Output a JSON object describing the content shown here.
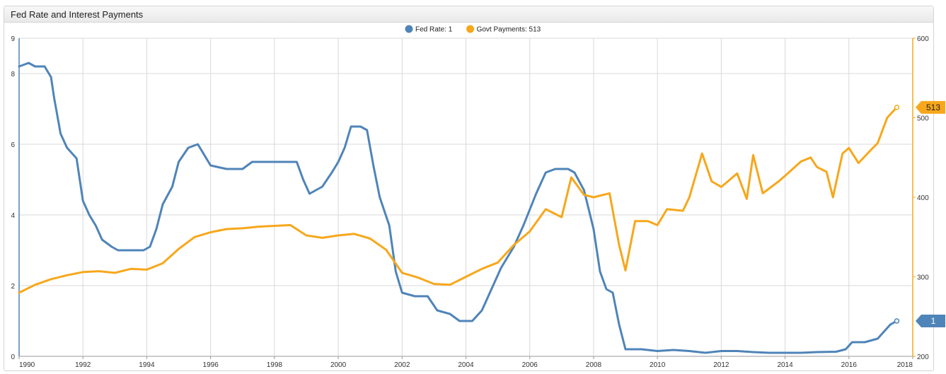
{
  "header": {
    "title": "Fed Rate and Interest Payments"
  },
  "colors": {
    "fed": "#4f84b8",
    "govt": "#f7a71b",
    "grid": "#d9d9d9"
  },
  "legend": [
    {
      "label": "Fed Rate: 1",
      "color": "#4f84b8"
    },
    {
      "label": "Govt Payments: 513",
      "color": "#f7a71b"
    }
  ],
  "chart_data": {
    "type": "line",
    "title": "Fed Rate and Interest Payments",
    "xlim": [
      1990,
      2018
    ],
    "x_ticks": [
      "1990",
      "1992",
      "1994",
      "1996",
      "1998",
      "2000",
      "2002",
      "2004",
      "2006",
      "2008",
      "2010",
      "2012",
      "2014",
      "2016",
      "2018"
    ],
    "y_left": {
      "lim": [
        0,
        9
      ],
      "ticks": [
        "0",
        "2",
        "4",
        "6",
        "8",
        "9"
      ]
    },
    "y_right": {
      "lim": [
        200,
        600
      ],
      "ticks": [
        "200",
        "300",
        "400",
        "500",
        "600"
      ]
    },
    "grid": true,
    "legend_position": "top-center",
    "series": [
      {
        "name": "Fed Rate",
        "axis": "left",
        "color": "#4f84b8",
        "end_label": "1",
        "points": [
          [
            1990.0,
            8.2
          ],
          [
            1990.3,
            8.3
          ],
          [
            1990.5,
            8.2
          ],
          [
            1990.8,
            8.2
          ],
          [
            1991.0,
            7.9
          ],
          [
            1991.1,
            7.3
          ],
          [
            1991.3,
            6.3
          ],
          [
            1991.5,
            5.9
          ],
          [
            1991.8,
            5.6
          ],
          [
            1992.0,
            4.4
          ],
          [
            1992.2,
            4.0
          ],
          [
            1992.4,
            3.7
          ],
          [
            1992.6,
            3.3
          ],
          [
            1992.9,
            3.1
          ],
          [
            1993.1,
            3.0
          ],
          [
            1993.5,
            3.0
          ],
          [
            1993.9,
            3.0
          ],
          [
            1994.1,
            3.1
          ],
          [
            1994.3,
            3.6
          ],
          [
            1994.5,
            4.3
          ],
          [
            1994.8,
            4.8
          ],
          [
            1995.0,
            5.5
          ],
          [
            1995.3,
            5.9
          ],
          [
            1995.6,
            6.0
          ],
          [
            1996.0,
            5.4
          ],
          [
            1996.5,
            5.3
          ],
          [
            1997.0,
            5.3
          ],
          [
            1997.3,
            5.5
          ],
          [
            1997.7,
            5.5
          ],
          [
            1998.0,
            5.5
          ],
          [
            1998.3,
            5.5
          ],
          [
            1998.7,
            5.5
          ],
          [
            1998.9,
            5.0
          ],
          [
            1999.1,
            4.6
          ],
          [
            1999.5,
            4.8
          ],
          [
            1999.8,
            5.2
          ],
          [
            2000.0,
            5.5
          ],
          [
            2000.2,
            5.9
          ],
          [
            2000.4,
            6.5
          ],
          [
            2000.7,
            6.5
          ],
          [
            2000.9,
            6.4
          ],
          [
            2001.1,
            5.4
          ],
          [
            2001.3,
            4.5
          ],
          [
            2001.6,
            3.7
          ],
          [
            2001.8,
            2.4
          ],
          [
            2002.0,
            1.8
          ],
          [
            2002.4,
            1.7
          ],
          [
            2002.8,
            1.7
          ],
          [
            2003.1,
            1.3
          ],
          [
            2003.5,
            1.2
          ],
          [
            2003.8,
            1.0
          ],
          [
            2004.2,
            1.0
          ],
          [
            2004.5,
            1.3
          ],
          [
            2004.8,
            1.9
          ],
          [
            2005.1,
            2.5
          ],
          [
            2005.5,
            3.1
          ],
          [
            2005.8,
            3.7
          ],
          [
            2006.2,
            4.6
          ],
          [
            2006.5,
            5.2
          ],
          [
            2006.8,
            5.3
          ],
          [
            2007.2,
            5.3
          ],
          [
            2007.4,
            5.2
          ],
          [
            2007.7,
            4.7
          ],
          [
            2008.0,
            3.6
          ],
          [
            2008.2,
            2.4
          ],
          [
            2008.4,
            1.9
          ],
          [
            2008.6,
            1.8
          ],
          [
            2008.8,
            0.9
          ],
          [
            2009.0,
            0.2
          ],
          [
            2009.5,
            0.2
          ],
          [
            2010.0,
            0.15
          ],
          [
            2010.5,
            0.18
          ],
          [
            2011.0,
            0.15
          ],
          [
            2011.5,
            0.1
          ],
          [
            2012.0,
            0.15
          ],
          [
            2012.5,
            0.15
          ],
          [
            2013.0,
            0.12
          ],
          [
            2013.5,
            0.1
          ],
          [
            2014.0,
            0.1
          ],
          [
            2014.5,
            0.1
          ],
          [
            2015.0,
            0.12
          ],
          [
            2015.6,
            0.13
          ],
          [
            2015.9,
            0.2
          ],
          [
            2016.1,
            0.4
          ],
          [
            2016.5,
            0.4
          ],
          [
            2016.9,
            0.5
          ],
          [
            2017.1,
            0.7
          ],
          [
            2017.3,
            0.9
          ],
          [
            2017.5,
            1.0
          ]
        ]
      },
      {
        "name": "Govt Payments",
        "axis": "right",
        "color": "#f7a71b",
        "end_label": "513",
        "points": [
          [
            1990.0,
            280
          ],
          [
            1990.5,
            290
          ],
          [
            1991.0,
            297
          ],
          [
            1991.5,
            302
          ],
          [
            1992.0,
            306
          ],
          [
            1992.5,
            307
          ],
          [
            1993.0,
            305
          ],
          [
            1993.5,
            310
          ],
          [
            1994.0,
            309
          ],
          [
            1994.5,
            317
          ],
          [
            1995.0,
            335
          ],
          [
            1995.5,
            350
          ],
          [
            1996.0,
            356
          ],
          [
            1996.5,
            360
          ],
          [
            1997.0,
            361
          ],
          [
            1997.5,
            363
          ],
          [
            1998.0,
            364
          ],
          [
            1998.5,
            365
          ],
          [
            1999.0,
            352
          ],
          [
            1999.5,
            349
          ],
          [
            2000.0,
            352
          ],
          [
            2000.5,
            354
          ],
          [
            2001.0,
            348
          ],
          [
            2001.5,
            334
          ],
          [
            2002.0,
            305
          ],
          [
            2002.5,
            299
          ],
          [
            2003.0,
            291
          ],
          [
            2003.5,
            290
          ],
          [
            2004.0,
            300
          ],
          [
            2004.5,
            310
          ],
          [
            2005.0,
            318
          ],
          [
            2005.5,
            340
          ],
          [
            2006.0,
            357
          ],
          [
            2006.5,
            385
          ],
          [
            2007.0,
            375
          ],
          [
            2007.3,
            425
          ],
          [
            2007.7,
            403
          ],
          [
            2008.0,
            400
          ],
          [
            2008.5,
            405
          ],
          [
            2008.8,
            340
          ],
          [
            2009.0,
            308
          ],
          [
            2009.3,
            370
          ],
          [
            2009.7,
            370
          ],
          [
            2010.0,
            365
          ],
          [
            2010.3,
            385
          ],
          [
            2010.8,
            383
          ],
          [
            2011.0,
            400
          ],
          [
            2011.4,
            455
          ],
          [
            2011.7,
            420
          ],
          [
            2012.0,
            413
          ],
          [
            2012.5,
            430
          ],
          [
            2012.8,
            398
          ],
          [
            2013.0,
            453
          ],
          [
            2013.3,
            405
          ],
          [
            2013.8,
            420
          ],
          [
            2014.0,
            427
          ],
          [
            2014.5,
            445
          ],
          [
            2014.8,
            450
          ],
          [
            2015.0,
            438
          ],
          [
            2015.3,
            432
          ],
          [
            2015.5,
            400
          ],
          [
            2015.8,
            455
          ],
          [
            2016.0,
            462
          ],
          [
            2016.3,
            443
          ],
          [
            2016.7,
            460
          ],
          [
            2016.9,
            468
          ],
          [
            2017.2,
            500
          ],
          [
            2017.5,
            513
          ]
        ]
      }
    ]
  }
}
